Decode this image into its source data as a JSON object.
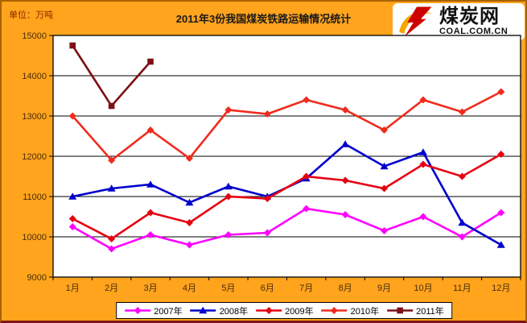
{
  "header": {
    "unit_label": "单位：万吨",
    "title": "2011年3份我国煤炭铁路运输情况统计"
  },
  "logo": {
    "site_name": "煤炭网",
    "domain": "COAL.COM.CN"
  },
  "colors": {
    "page_background": "#FFA41C",
    "plot_background": "#FFFFFF",
    "grid": "#000000",
    "axis_label": "#4A2C12",
    "unit_label": "#8B2500",
    "title": "#1A1A1A",
    "logo_red": "#CC0001",
    "logo_orange": "#F7A600"
  },
  "chart_data": {
    "type": "line",
    "title": "2011年3份我国煤炭铁路运输情况统计",
    "ylabel": "万吨",
    "xlabel": "",
    "ylim": [
      9000,
      15000
    ],
    "yticks": [
      9000,
      10000,
      11000,
      12000,
      13000,
      14000,
      15000
    ],
    "grid": true,
    "legend_position": "bottom",
    "categories": [
      "1月",
      "2月",
      "3月",
      "4月",
      "5月",
      "6月",
      "7月",
      "8月",
      "9月",
      "10月",
      "11月",
      "12月"
    ],
    "series": [
      {
        "name": "2007年",
        "color": "#FF00FF",
        "marker": "diamond",
        "values": [
          10250,
          9700,
          10050,
          9800,
          10050,
          10100,
          10700,
          10550,
          10150,
          10500,
          10000,
          10600
        ]
      },
      {
        "name": "2008年",
        "color": "#0000CC",
        "marker": "triangle",
        "values": [
          11000,
          11200,
          11300,
          10850,
          11250,
          11000,
          11450,
          12300,
          11750,
          12100,
          10350,
          9800
        ]
      },
      {
        "name": "2009年",
        "color": "#E60012",
        "marker": "diamond",
        "values": [
          10450,
          9950,
          10600,
          10350,
          11000,
          10950,
          11500,
          11400,
          11200,
          11800,
          11500,
          12050
        ]
      },
      {
        "name": "2010年",
        "color": "#F02B1D",
        "marker": "diamond",
        "values": [
          13000,
          11900,
          12650,
          11950,
          13150,
          13050,
          13400,
          13150,
          12650,
          13400,
          13100,
          13600
        ]
      },
      {
        "name": "2011年",
        "color": "#7C1116",
        "marker": "square",
        "values": [
          14750,
          13250,
          14350,
          null,
          null,
          null,
          null,
          null,
          null,
          null,
          null,
          null
        ]
      }
    ]
  }
}
